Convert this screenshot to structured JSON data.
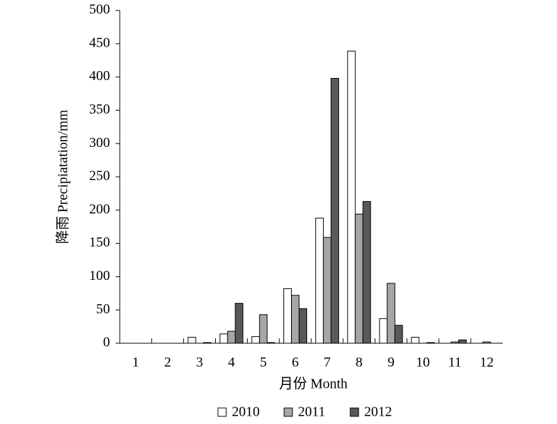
{
  "chart_data": {
    "type": "bar",
    "x_label": "月份 Month",
    "y_label": "降雨 Precipiatation/mm",
    "categories": [
      "1",
      "2",
      "3",
      "4",
      "5",
      "6",
      "7",
      "8",
      "9",
      "10",
      "11",
      "12"
    ],
    "series": [
      {
        "name": "2010",
        "color": "#ffffff",
        "values": [
          0,
          0,
          9,
          14,
          10,
          82,
          188,
          439,
          37,
          9,
          0,
          0
        ]
      },
      {
        "name": "2011",
        "color": "#a6a6a6",
        "values": [
          0,
          0,
          0,
          18,
          43,
          72,
          159,
          194,
          90,
          0,
          2,
          2
        ]
      },
      {
        "name": "2012",
        "color": "#595959",
        "values": [
          0,
          0,
          1,
          60,
          1,
          52,
          398,
          213,
          27,
          1,
          5,
          0
        ]
      }
    ],
    "ylim": [
      0,
      500
    ],
    "yticks": [
      0,
      50,
      100,
      150,
      200,
      250,
      300,
      350,
      400,
      450,
      500
    ],
    "grid": false,
    "legend": "bottom"
  }
}
